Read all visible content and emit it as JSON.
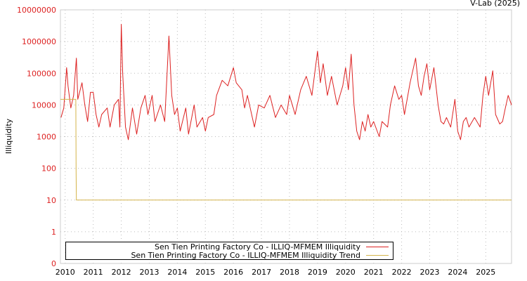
{
  "credit": "V-Lab (2025)",
  "colors": {
    "series": "#dd2222",
    "trend": "#d4b44a",
    "grid": "#bbbbbb",
    "axis": "#cccccc"
  },
  "chart_data": {
    "type": "line",
    "title": "",
    "xlabel": "",
    "ylabel": "Illiquidity",
    "yscale": "log",
    "xlim": [
      2009.83,
      2025.92
    ],
    "ylim": [
      0.1,
      10000000
    ],
    "yticks": [
      {
        "value": 10000000,
        "label": "10000000"
      },
      {
        "value": 1000000,
        "label": "1000000"
      },
      {
        "value": 100000,
        "label": "100000"
      },
      {
        "value": 10000,
        "label": "10000"
      },
      {
        "value": 1000,
        "label": "1000"
      },
      {
        "value": 100,
        "label": "100"
      },
      {
        "value": 10,
        "label": "10"
      },
      {
        "value": 1,
        "label": "1"
      },
      {
        "value": 0.1,
        "label": "0"
      }
    ],
    "xticks": [
      "2010",
      "2011",
      "2012",
      "2013",
      "2014",
      "2015",
      "2016",
      "2017",
      "2018",
      "2019",
      "2020",
      "2021",
      "2022",
      "2023",
      "2024",
      "2025"
    ],
    "grid": true,
    "legend_position": "bottom-left",
    "series": [
      {
        "name": "Sen Tien Printing Factory Co - ILLIQ-MFMEM Illiquidity",
        "color": "#dd2222",
        "points": [
          [
            2009.85,
            4000
          ],
          [
            2009.95,
            8000
          ],
          [
            2010.05,
            150000
          ],
          [
            2010.1,
            40000
          ],
          [
            2010.2,
            8000
          ],
          [
            2010.3,
            20000
          ],
          [
            2010.4,
            300000
          ],
          [
            2010.45,
            15000
          ],
          [
            2010.6,
            50000
          ],
          [
            2010.7,
            10000
          ],
          [
            2010.8,
            3000
          ],
          [
            2010.9,
            25000
          ],
          [
            2011.0,
            25000
          ],
          [
            2011.1,
            5000
          ],
          [
            2011.2,
            2000
          ],
          [
            2011.3,
            5000
          ],
          [
            2011.5,
            8000
          ],
          [
            2011.6,
            2000
          ],
          [
            2011.75,
            10000
          ],
          [
            2011.9,
            15000
          ],
          [
            2011.95,
            2000
          ],
          [
            2012.0,
            3500000
          ],
          [
            2012.05,
            100000
          ],
          [
            2012.15,
            2000
          ],
          [
            2012.25,
            800
          ],
          [
            2012.4,
            8000
          ],
          [
            2012.55,
            1200
          ],
          [
            2012.7,
            8000
          ],
          [
            2012.85,
            20000
          ],
          [
            2012.95,
            5000
          ],
          [
            2013.1,
            20000
          ],
          [
            2013.2,
            3000
          ],
          [
            2013.4,
            10000
          ],
          [
            2013.55,
            3000
          ],
          [
            2013.7,
            1500000
          ],
          [
            2013.8,
            20000
          ],
          [
            2013.9,
            5000
          ],
          [
            2014.0,
            8000
          ],
          [
            2014.1,
            1500
          ],
          [
            2014.3,
            8000
          ],
          [
            2014.4,
            1200
          ],
          [
            2014.6,
            10000
          ],
          [
            2014.7,
            2000
          ],
          [
            2014.9,
            4000
          ],
          [
            2015.0,
            1500
          ],
          [
            2015.1,
            4000
          ],
          [
            2015.3,
            5000
          ],
          [
            2015.4,
            20000
          ],
          [
            2015.6,
            60000
          ],
          [
            2015.8,
            40000
          ],
          [
            2016.0,
            150000
          ],
          [
            2016.1,
            50000
          ],
          [
            2016.3,
            30000
          ],
          [
            2016.4,
            8000
          ],
          [
            2016.5,
            20000
          ],
          [
            2016.75,
            2000
          ],
          [
            2016.9,
            10000
          ],
          [
            2017.1,
            8000
          ],
          [
            2017.3,
            20000
          ],
          [
            2017.5,
            4000
          ],
          [
            2017.7,
            10000
          ],
          [
            2017.9,
            5000
          ],
          [
            2018.0,
            20000
          ],
          [
            2018.2,
            5000
          ],
          [
            2018.4,
            30000
          ],
          [
            2018.6,
            80000
          ],
          [
            2018.8,
            20000
          ],
          [
            2019.0,
            500000
          ],
          [
            2019.1,
            50000
          ],
          [
            2019.2,
            200000
          ],
          [
            2019.35,
            20000
          ],
          [
            2019.5,
            80000
          ],
          [
            2019.7,
            10000
          ],
          [
            2019.9,
            40000
          ],
          [
            2020.0,
            150000
          ],
          [
            2020.1,
            30000
          ],
          [
            2020.2,
            400000
          ],
          [
            2020.3,
            10000
          ],
          [
            2020.4,
            1500
          ],
          [
            2020.5,
            800
          ],
          [
            2020.6,
            3000
          ],
          [
            2020.7,
            1500
          ],
          [
            2020.8,
            5000
          ],
          [
            2020.9,
            2000
          ],
          [
            2021.0,
            3000
          ],
          [
            2021.2,
            1000
          ],
          [
            2021.3,
            3000
          ],
          [
            2021.5,
            2000
          ],
          [
            2021.6,
            10000
          ],
          [
            2021.75,
            40000
          ],
          [
            2021.9,
            15000
          ],
          [
            2022.0,
            20000
          ],
          [
            2022.1,
            5000
          ],
          [
            2022.3,
            50000
          ],
          [
            2022.5,
            300000
          ],
          [
            2022.6,
            40000
          ],
          [
            2022.7,
            20000
          ],
          [
            2022.8,
            80000
          ],
          [
            2022.9,
            200000
          ],
          [
            2023.0,
            30000
          ],
          [
            2023.15,
            150000
          ],
          [
            2023.3,
            10000
          ],
          [
            2023.4,
            3000
          ],
          [
            2023.5,
            2500
          ],
          [
            2023.6,
            4000
          ],
          [
            2023.75,
            2000
          ],
          [
            2023.9,
            15000
          ],
          [
            2024.0,
            1500
          ],
          [
            2024.1,
            800
          ],
          [
            2024.2,
            3000
          ],
          [
            2024.3,
            4000
          ],
          [
            2024.4,
            2000
          ],
          [
            2024.6,
            4000
          ],
          [
            2024.8,
            2000
          ],
          [
            2024.9,
            20000
          ],
          [
            2025.0,
            80000
          ],
          [
            2025.1,
            20000
          ],
          [
            2025.25,
            120000
          ],
          [
            2025.35,
            5000
          ],
          [
            2025.5,
            2500
          ],
          [
            2025.6,
            3000
          ],
          [
            2025.7,
            8000
          ],
          [
            2025.8,
            20000
          ],
          [
            2025.92,
            10000
          ]
        ]
      },
      {
        "name": "Sen Tien Printing Factory Co - ILLIQ-MFMEM Illiquidity Trend",
        "color": "#d4b44a",
        "points": [
          [
            2009.83,
            15000
          ],
          [
            2010.38,
            15000
          ],
          [
            2010.39,
            80
          ],
          [
            2010.4,
            10
          ],
          [
            2025.92,
            10
          ]
        ]
      }
    ]
  }
}
